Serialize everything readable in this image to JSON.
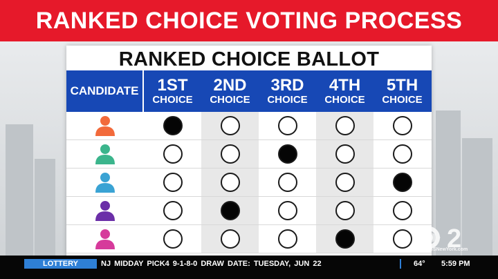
{
  "headline": {
    "text": "RANKED CHOICE VOTING PROCESS"
  },
  "ballot": {
    "title": "RANKED CHOICE BALLOT",
    "candidate_header": "CANDIDATE",
    "choices": [
      {
        "ordinal": "1ST",
        "word": "CHOICE"
      },
      {
        "ordinal": "2ND",
        "word": "CHOICE"
      },
      {
        "ordinal": "3RD",
        "word": "CHOICE"
      },
      {
        "ordinal": "4TH",
        "word": "CHOICE"
      },
      {
        "ordinal": "5TH",
        "word": "CHOICE"
      }
    ],
    "candidates": [
      {
        "icon": "person-icon",
        "color": "#f26a3b",
        "selected_choice": 1
      },
      {
        "icon": "person-icon",
        "color": "#3bb58c",
        "selected_choice": 3
      },
      {
        "icon": "person-icon",
        "color": "#3aa3d4",
        "selected_choice": 5
      },
      {
        "icon": "person-icon",
        "color": "#6b2fa8",
        "selected_choice": 2
      },
      {
        "icon": "person-icon",
        "color": "#d63a9b",
        "selected_choice": 4
      }
    ],
    "header_color": "#1748b5"
  },
  "ticker": {
    "label": "LOTTERY",
    "text": "NJ MIDDAY PICK4   9-1-8-0   DRAW DATE:   TUESDAY, JUN 22",
    "temperature": "64°",
    "time": "5:59 PM"
  },
  "logo": {
    "text": "CBSNewYork.com"
  },
  "colors": {
    "headline_red": "#e6192a",
    "ticker_blue": "#2e7fd6"
  }
}
